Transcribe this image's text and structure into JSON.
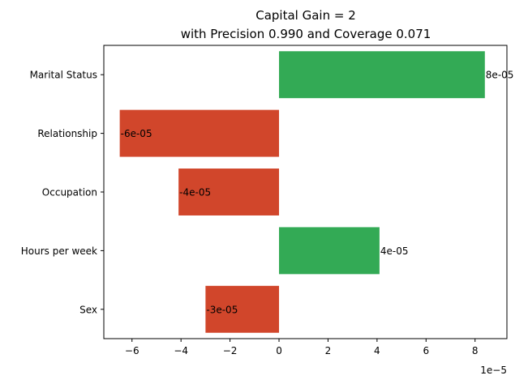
{
  "chart_data": {
    "type": "bar",
    "orientation": "horizontal",
    "title_lines": [
      "Capital Gain = 2",
      "with Precision 0.990 and Coverage 0.071"
    ],
    "categories": [
      "Marital Status",
      "Relationship",
      "Occupation",
      "Hours per week",
      "Sex"
    ],
    "values": [
      8.4e-05,
      -6.5e-05,
      -4.1e-05,
      4.1e-05,
      -3e-05
    ],
    "data_labels": [
      "8e-05",
      "-6e-05",
      "-4e-05",
      "4e-05",
      "-3e-05"
    ],
    "xlim": [
      -7.15e-05,
      9.3e-05
    ],
    "x_ticks": [
      -6e-05,
      -4e-05,
      -2e-05,
      0,
      2e-05,
      4e-05,
      6e-05,
      8e-05
    ],
    "x_tick_labels": [
      "−6",
      "−4",
      "−2",
      "0",
      "2",
      "4",
      "6",
      "8"
    ],
    "x_offset_label": "1e−5",
    "grid": false,
    "legend": "none",
    "colors": {
      "positive": "#33aa55",
      "negative": "#d1462b"
    }
  }
}
